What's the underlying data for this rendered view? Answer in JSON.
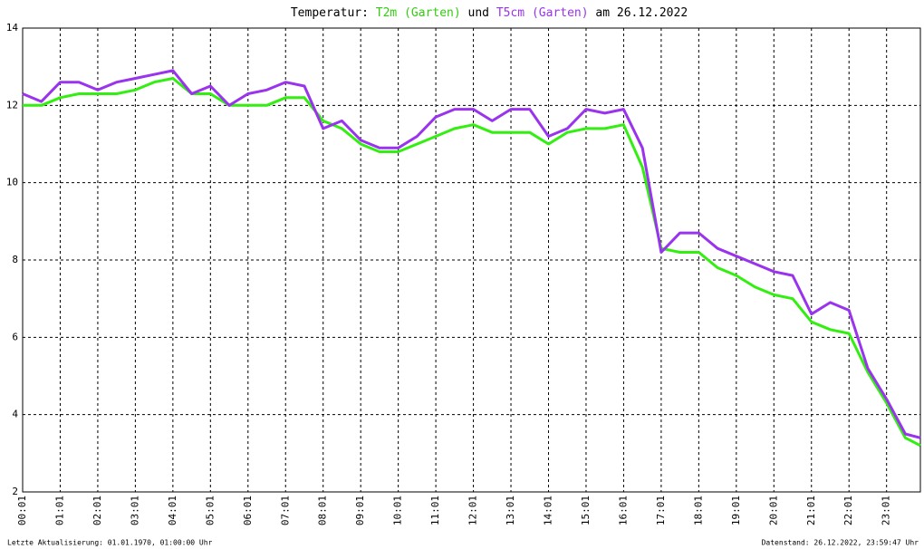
{
  "chart_data": {
    "type": "line",
    "title": {
      "prefix": "Temperatur:",
      "middle": "und",
      "suffix": "am 26.12.2022"
    },
    "x": [
      1,
      31,
      61,
      91,
      121,
      151,
      181,
      211,
      241,
      271,
      301,
      331,
      361,
      391,
      421,
      451,
      481,
      511,
      541,
      571,
      601,
      631,
      661,
      691,
      721,
      751,
      781,
      811,
      841,
      871,
      901,
      931,
      961,
      991,
      1021,
      1051,
      1081,
      1111,
      1141,
      1171,
      1201,
      1231,
      1261,
      1291,
      1321,
      1351,
      1381,
      1411,
      1435
    ],
    "series": [
      {
        "name": "T2m (Garten)",
        "color": "#33ee11",
        "values": [
          12.0,
          12.0,
          12.2,
          12.3,
          12.3,
          12.3,
          12.4,
          12.6,
          12.7,
          12.3,
          12.3,
          12.0,
          12.0,
          12.0,
          12.2,
          12.2,
          11.6,
          11.4,
          11.0,
          10.8,
          10.8,
          11.0,
          11.2,
          11.4,
          11.5,
          11.3,
          11.3,
          11.3,
          11.0,
          11.3,
          11.4,
          11.4,
          11.5,
          10.4,
          8.3,
          8.2,
          8.2,
          7.8,
          7.6,
          7.3,
          7.1,
          7.0,
          6.4,
          6.2,
          6.1,
          5.1,
          4.3,
          3.4,
          3.2
        ]
      },
      {
        "name": "T5cm (Garten)",
        "color": "#9933ee",
        "values": [
          12.3,
          12.1,
          12.6,
          12.6,
          12.4,
          12.6,
          12.7,
          12.8,
          12.9,
          12.3,
          12.5,
          12.0,
          12.3,
          12.4,
          12.6,
          12.5,
          11.4,
          11.6,
          11.1,
          10.9,
          10.9,
          11.2,
          11.7,
          11.9,
          11.9,
          11.6,
          11.9,
          11.9,
          11.2,
          11.4,
          11.9,
          11.8,
          11.9,
          10.9,
          8.2,
          8.7,
          8.7,
          8.3,
          8.1,
          7.9,
          7.7,
          7.6,
          6.6,
          6.9,
          6.7,
          5.2,
          4.4,
          3.5,
          3.4
        ]
      }
    ],
    "xlim": [
      1,
      1435
    ],
    "xticks": [
      {
        "value": 1,
        "label": "00:01"
      },
      {
        "value": 61,
        "label": "01:01"
      },
      {
        "value": 121,
        "label": "02:01"
      },
      {
        "value": 181,
        "label": "03:01"
      },
      {
        "value": 241,
        "label": "04:01"
      },
      {
        "value": 301,
        "label": "05:01"
      },
      {
        "value": 361,
        "label": "06:01"
      },
      {
        "value": 421,
        "label": "07:01"
      },
      {
        "value": 481,
        "label": "08:01"
      },
      {
        "value": 541,
        "label": "09:01"
      },
      {
        "value": 601,
        "label": "10:01"
      },
      {
        "value": 661,
        "label": "11:01"
      },
      {
        "value": 721,
        "label": "12:01"
      },
      {
        "value": 781,
        "label": "13:01"
      },
      {
        "value": 841,
        "label": "14:01"
      },
      {
        "value": 901,
        "label": "15:01"
      },
      {
        "value": 961,
        "label": "16:01"
      },
      {
        "value": 1021,
        "label": "17:01"
      },
      {
        "value": 1081,
        "label": "18:01"
      },
      {
        "value": 1141,
        "label": "19:01"
      },
      {
        "value": 1201,
        "label": "20:01"
      },
      {
        "value": 1261,
        "label": "21:01"
      },
      {
        "value": 1321,
        "label": "22:01"
      },
      {
        "value": 1381,
        "label": "23:01"
      }
    ],
    "ylim": [
      2,
      14
    ],
    "yticks": [
      2,
      4,
      6,
      8,
      10,
      12,
      14
    ],
    "grid": true,
    "footer_left": "Letzte Aktualisierung: 01.01.1970, 01:00:00 Uhr",
    "footer_right": "Datenstand: 26.12.2022, 23:59:47 Uhr"
  }
}
